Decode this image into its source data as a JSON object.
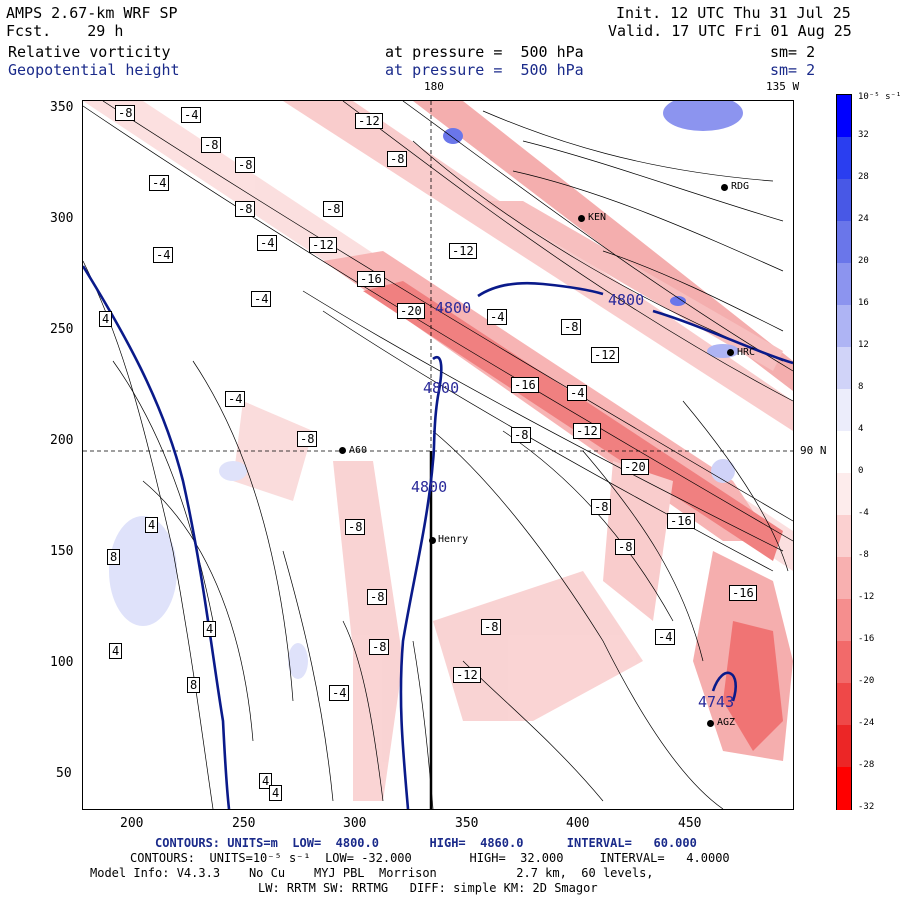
{
  "header": {
    "model": "AMPS 2.67-km WRF SP",
    "fcst_label": "Fcst.",
    "fcst_value": "29 h",
    "init": "Init. 12 UTC Thu 31 Jul 25",
    "valid": "Valid. 17 UTC Fri 01 Aug 25",
    "field1": "Relative vorticity",
    "field2": "Geopotential height",
    "pressure1": "at pressure =  500 hPa",
    "pressure2": "at pressure =  500 hPa",
    "sm1": "sm= 2",
    "sm2": "sm= 2",
    "lon_180": "180",
    "lon_135w": "135 W",
    "lat_90n": "90 N"
  },
  "axes": {
    "x_ticks": [
      "200",
      "250",
      "300",
      "350",
      "400",
      "450"
    ],
    "y_ticks": [
      "350",
      "300",
      "250",
      "200",
      "150",
      "100",
      "50"
    ]
  },
  "colorbar": {
    "unit": "10⁻⁵ s⁻¹",
    "ticks": [
      "32",
      "28",
      "24",
      "20",
      "16",
      "12",
      "8",
      "4",
      "0",
      "-4",
      "-8",
      "-12",
      "-16",
      "-20",
      "-24",
      "-28",
      "-32"
    ],
    "colors": [
      "#0000ff",
      "#2a3ef0",
      "#4858e6",
      "#6a76ea",
      "#8c94ef",
      "#aeb4f4",
      "#d0d3f8",
      "#ecedfb",
      "#ffffff",
      "#fdecec",
      "#fbd0d0",
      "#f8b0b0",
      "#f58e8e",
      "#f26a6a",
      "#ef4848",
      "#ec2626",
      "#ff0000"
    ]
  },
  "sites": [
    {
      "name": "RDG"
    },
    {
      "name": "KEN"
    },
    {
      "name": "HRC"
    },
    {
      "name": "Henry"
    },
    {
      "name": "A60"
    },
    {
      "name": "AGZ"
    }
  ],
  "height_labels": [
    "4800",
    "4800",
    "4800",
    "4800",
    "4743"
  ],
  "contour_labels": [
    "-8",
    "-4",
    "-8",
    "-12",
    "-8",
    "-4",
    "-8",
    "-8",
    "-4",
    "-8",
    "-12",
    "-4",
    "-16",
    "-20",
    "-12",
    "-4",
    "-8",
    "4",
    "-4",
    "-12",
    "-16",
    "-20",
    "-4",
    "-8",
    "-12",
    "-8",
    "-4",
    "-16",
    "-8",
    "4",
    "8",
    "4",
    "8",
    "4",
    "4",
    "-4",
    "-8",
    "-8",
    "-8",
    "-12",
    "-8",
    "-8",
    "-4",
    "-16",
    "4"
  ],
  "footer": {
    "line1": "CONTOURS: UNITS=m  LOW=  4800.0       HIGH=  4860.0      INTERVAL=   60.000",
    "line2": "CONTOURS:  UNITS=10⁻⁵ s⁻¹  LOW= -32.000        HIGH=  32.000     INTERVAL=   4.0000",
    "line3": "Model Info: V4.3.3    No Cu    MYJ PBL  Morrison           2.7 km,  60 levels,",
    "line4": "LW: RRTM SW: RRTMG   DIFF: simple KM: 2D Smagor"
  }
}
